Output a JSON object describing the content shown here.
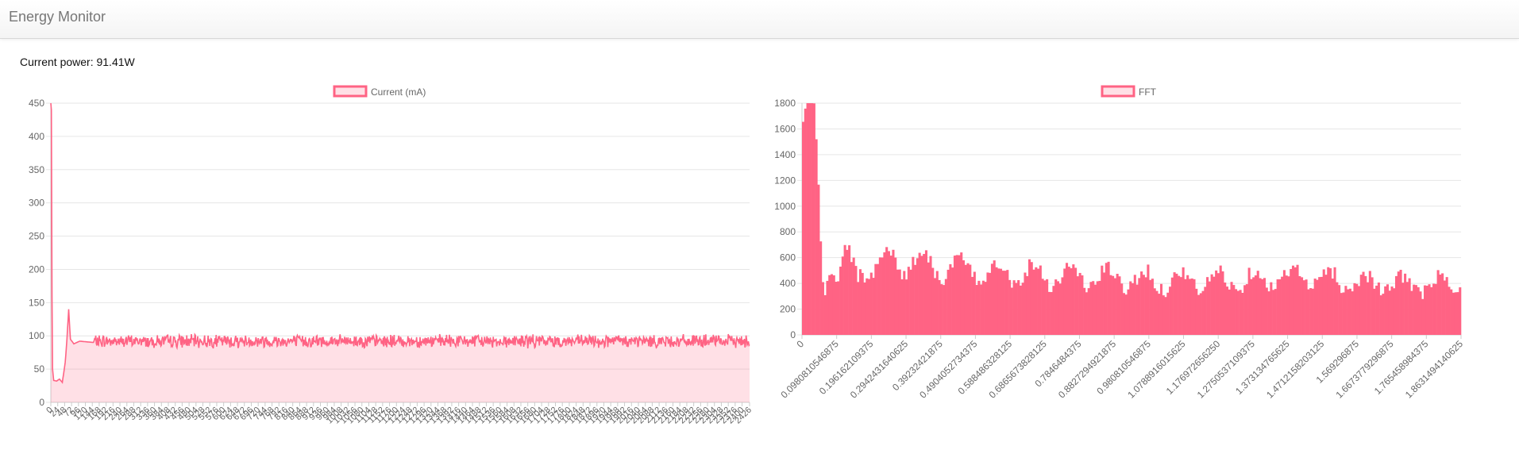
{
  "app": {
    "title": "Energy Monitor"
  },
  "status": {
    "power_label": "Current power: 91.41W",
    "power_value": 91.41,
    "power_unit": "W"
  },
  "colors": {
    "series_line": "#ff6384",
    "series_fill": "rgba(255,99,132,0.2)",
    "fft_fill": "#ff6384",
    "grid": "#e6e6e6",
    "tick": "#666666"
  },
  "chart_data": [
    {
      "type": "line",
      "legend": [
        "Current (mA)"
      ],
      "legend_position": "top",
      "grid": true,
      "ylim": [
        0,
        450
      ],
      "yticks": [
        0,
        50,
        100,
        150,
        200,
        250,
        300,
        350,
        400,
        450
      ],
      "x_first": 0,
      "x_step": 2,
      "x_last": 2426,
      "x_tick_labels": [
        "0",
        "24",
        "48",
        "72",
        "96",
        "120",
        "144",
        "168",
        "192",
        "216",
        "240",
        "264",
        "288",
        "312",
        "336",
        "360",
        "384",
        "408",
        "432",
        "456",
        "480",
        "504",
        "528",
        "552",
        "576",
        "600",
        "624",
        "648",
        "672",
        "696",
        "720",
        "744",
        "768",
        "792",
        "816",
        "840",
        "864",
        "888",
        "912",
        "936",
        "960",
        "984",
        "1008",
        "1032",
        "1056",
        "1080",
        "1104",
        "1128",
        "1152",
        "1176",
        "1200",
        "1224",
        "1248",
        "1272",
        "1296",
        "1320",
        "1344",
        "1368",
        "1392",
        "1416",
        "1440",
        "1464",
        "1488",
        "1512",
        "1536",
        "1560",
        "1584",
        "1608",
        "1632",
        "1656",
        "1680",
        "1704",
        "1728",
        "1752",
        "1776",
        "1800",
        "1824",
        "1848",
        "1872",
        "1896",
        "1920",
        "1944",
        "1968",
        "1992",
        "2016",
        "2040",
        "2064",
        "2088",
        "2112",
        "2136",
        "2160",
        "2184",
        "2208",
        "2232",
        "2256",
        "2280",
        "2304",
        "2328",
        "2352",
        "2376",
        "2400",
        "2426"
      ],
      "series": [
        {
          "name": "Current (mA)",
          "keypoints": [
            [
              0,
              450
            ],
            [
              2,
              440
            ],
            [
              4,
              160
            ],
            [
              6,
              50
            ],
            [
              10,
              33
            ],
            [
              20,
              32
            ],
            [
              30,
              35
            ],
            [
              40,
              30
            ],
            [
              50,
              60
            ],
            [
              56,
              95
            ],
            [
              62,
              140
            ],
            [
              68,
              95
            ],
            [
              80,
              88
            ],
            [
              100,
              92
            ],
            [
              150,
              90
            ],
            [
              2426,
              88
            ]
          ],
          "steady_mean": 92,
          "steady_noise": 16
        }
      ]
    },
    {
      "type": "bar",
      "legend": [
        "FFT"
      ],
      "legend_position": "top",
      "grid": true,
      "ylim": [
        0,
        1800
      ],
      "yticks": [
        0,
        200,
        400,
        600,
        800,
        1000,
        1200,
        1400,
        1600,
        1800
      ],
      "x_tick_labels": [
        "0",
        "0.0980810546875",
        "0.196162109375",
        "0.2942431640625",
        "0.39232421875",
        "0.4904052734375",
        "0.588486328125",
        "0.6865673828125",
        "0.7846484375",
        "0.8827294921875",
        "0.980810546875",
        "1.0788916015625",
        "1.176972656250",
        "1.2750537109375",
        "1.373134765625",
        "1.4712158203125",
        "1.569296875",
        "1.6673779296875",
        "1.765458984375",
        "1.8631494140625"
      ],
      "bins": 300,
      "x_max": 1.87,
      "envelope": [
        [
          0,
          1650
        ],
        [
          0.01,
          1700
        ],
        [
          0.02,
          1720
        ],
        [
          0.03,
          1600
        ],
        [
          0.04,
          1250
        ],
        [
          0.05,
          700
        ],
        [
          0.06,
          300
        ],
        [
          0.07,
          450
        ],
        [
          0.08,
          620
        ],
        [
          0.1,
          450
        ],
        [
          0.12,
          620
        ],
        [
          0.15,
          450
        ],
        [
          0.2,
          560
        ],
        [
          0.3,
          580
        ],
        [
          0.4,
          520
        ],
        [
          0.6,
          480
        ],
        [
          0.8,
          450
        ],
        [
          1.0,
          420
        ],
        [
          1.2,
          420
        ],
        [
          1.4,
          450
        ],
        [
          1.5,
          430
        ],
        [
          1.6,
          400
        ],
        [
          1.87,
          380
        ]
      ],
      "noise": 120
    }
  ]
}
